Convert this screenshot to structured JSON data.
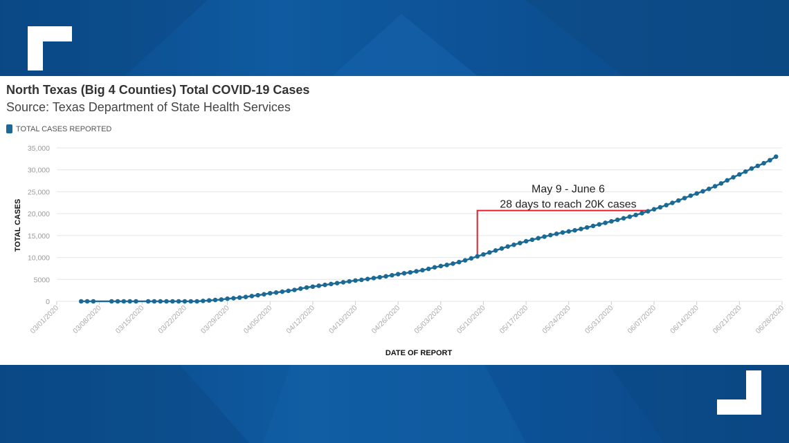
{
  "colors": {
    "brand_blue": "#0d4d8a",
    "series": "#1b6a95",
    "annotation": "#e0202a",
    "panel": "#ffffff"
  },
  "header": {
    "title": "North Texas (Big 4 Counties) Total COVID-19 Cases",
    "subtitle": "Source: Texas Department of State Health Services"
  },
  "chart_data": {
    "type": "line",
    "title": "North Texas (Big 4 Counties) Total COVID-19 Cases",
    "subtitle": "Source: Texas Department of State Health Services",
    "xlabel": "DATE OF REPORT",
    "ylabel": "TOTAL CASES",
    "ylim": [
      0,
      35000
    ],
    "xlim": [
      "2020-03-01",
      "2020-06-28"
    ],
    "y_ticks": [
      "0",
      "5000",
      "10,000",
      "15,000",
      "20,000",
      "25,000",
      "30,000",
      "35,000"
    ],
    "x_ticks": [
      "03/01/2020",
      "03/08/2020",
      "03/15/2020",
      "03/22/2020",
      "03/29/2020",
      "04/05/2020",
      "04/12/2020",
      "04/19/2020",
      "04/26/2020",
      "05/03/2020",
      "05/10/2020",
      "05/17/2020",
      "05/24/2020",
      "05/31/2020",
      "06/07/2020",
      "06/14/2020",
      "06/21/2020",
      "06/28/2020"
    ],
    "grid": true,
    "legend_position": "top-left",
    "series": [
      {
        "name": "TOTAL CASES REPORTED",
        "color": "#1b6a95",
        "points": [
          {
            "x": "2020-03-05",
            "y": 0
          },
          {
            "x": "2020-03-06",
            "y": 0
          },
          {
            "x": "2020-03-07",
            "y": 0
          },
          {
            "x": "2020-03-10",
            "y": 0
          },
          {
            "x": "2020-03-11",
            "y": 0
          },
          {
            "x": "2020-03-12",
            "y": 0
          },
          {
            "x": "2020-03-13",
            "y": 0
          },
          {
            "x": "2020-03-14",
            "y": 0
          },
          {
            "x": "2020-03-16",
            "y": 0
          },
          {
            "x": "2020-03-17",
            "y": 0
          },
          {
            "x": "2020-03-18",
            "y": 0
          },
          {
            "x": "2020-03-19",
            "y": 0
          },
          {
            "x": "2020-03-20",
            "y": 0
          },
          {
            "x": "2020-03-21",
            "y": 0
          },
          {
            "x": "2020-03-22",
            "y": 0
          },
          {
            "x": "2020-03-23",
            "y": 0
          },
          {
            "x": "2020-03-24",
            "y": 0
          },
          {
            "x": "2020-03-25",
            "y": 100
          },
          {
            "x": "2020-03-26",
            "y": 200
          },
          {
            "x": "2020-03-27",
            "y": 300
          },
          {
            "x": "2020-03-28",
            "y": 400
          },
          {
            "x": "2020-03-29",
            "y": 600
          },
          {
            "x": "2020-03-30",
            "y": 700
          },
          {
            "x": "2020-03-31",
            "y": 850
          },
          {
            "x": "2020-04-01",
            "y": 1000
          },
          {
            "x": "2020-04-02",
            "y": 1200
          },
          {
            "x": "2020-04-03",
            "y": 1400
          },
          {
            "x": "2020-04-04",
            "y": 1600
          },
          {
            "x": "2020-04-05",
            "y": 1850
          },
          {
            "x": "2020-04-06",
            "y": 2000
          },
          {
            "x": "2020-04-07",
            "y": 2200
          },
          {
            "x": "2020-04-08",
            "y": 2400
          },
          {
            "x": "2020-04-09",
            "y": 2600
          },
          {
            "x": "2020-04-10",
            "y": 2900
          },
          {
            "x": "2020-04-11",
            "y": 3150
          },
          {
            "x": "2020-04-12",
            "y": 3350
          },
          {
            "x": "2020-04-13",
            "y": 3550
          },
          {
            "x": "2020-04-14",
            "y": 3750
          },
          {
            "x": "2020-04-15",
            "y": 3950
          },
          {
            "x": "2020-04-16",
            "y": 4150
          },
          {
            "x": "2020-04-17",
            "y": 4350
          },
          {
            "x": "2020-04-18",
            "y": 4550
          },
          {
            "x": "2020-04-19",
            "y": 4750
          },
          {
            "x": "2020-04-20",
            "y": 4900
          },
          {
            "x": "2020-04-21",
            "y": 5100
          },
          {
            "x": "2020-04-22",
            "y": 5300
          },
          {
            "x": "2020-04-23",
            "y": 5500
          },
          {
            "x": "2020-04-24",
            "y": 5700
          },
          {
            "x": "2020-04-25",
            "y": 5950
          },
          {
            "x": "2020-04-26",
            "y": 6200
          },
          {
            "x": "2020-04-27",
            "y": 6400
          },
          {
            "x": "2020-04-28",
            "y": 6600
          },
          {
            "x": "2020-04-29",
            "y": 6850
          },
          {
            "x": "2020-04-30",
            "y": 7100
          },
          {
            "x": "2020-05-01",
            "y": 7400
          },
          {
            "x": "2020-05-02",
            "y": 7750
          },
          {
            "x": "2020-05-03",
            "y": 8050
          },
          {
            "x": "2020-05-04",
            "y": 8300
          },
          {
            "x": "2020-05-05",
            "y": 8600
          },
          {
            "x": "2020-05-06",
            "y": 8950
          },
          {
            "x": "2020-05-07",
            "y": 9350
          },
          {
            "x": "2020-05-08",
            "y": 9800
          },
          {
            "x": "2020-05-09",
            "y": 10250
          },
          {
            "x": "2020-05-10",
            "y": 10700
          },
          {
            "x": "2020-05-11",
            "y": 11150
          },
          {
            "x": "2020-05-12",
            "y": 11600
          },
          {
            "x": "2020-05-13",
            "y": 12050
          },
          {
            "x": "2020-05-14",
            "y": 12500
          },
          {
            "x": "2020-05-15",
            "y": 12900
          },
          {
            "x": "2020-05-16",
            "y": 13300
          },
          {
            "x": "2020-05-17",
            "y": 13700
          },
          {
            "x": "2020-05-18",
            "y": 14050
          },
          {
            "x": "2020-05-19",
            "y": 14400
          },
          {
            "x": "2020-05-20",
            "y": 14750
          },
          {
            "x": "2020-05-21",
            "y": 15100
          },
          {
            "x": "2020-05-22",
            "y": 15400
          },
          {
            "x": "2020-05-23",
            "y": 15700
          },
          {
            "x": "2020-05-24",
            "y": 15950
          },
          {
            "x": "2020-05-25",
            "y": 16200
          },
          {
            "x": "2020-05-26",
            "y": 16500
          },
          {
            "x": "2020-05-27",
            "y": 16850
          },
          {
            "x": "2020-05-28",
            "y": 17200
          },
          {
            "x": "2020-05-29",
            "y": 17550
          },
          {
            "x": "2020-05-30",
            "y": 17900
          },
          {
            "x": "2020-05-31",
            "y": 18250
          },
          {
            "x": "2020-06-01",
            "y": 18600
          },
          {
            "x": "2020-06-02",
            "y": 18950
          },
          {
            "x": "2020-06-03",
            "y": 19300
          },
          {
            "x": "2020-06-04",
            "y": 19700
          },
          {
            "x": "2020-06-05",
            "y": 20100
          },
          {
            "x": "2020-06-06",
            "y": 20550
          },
          {
            "x": "2020-06-07",
            "y": 21000
          },
          {
            "x": "2020-06-08",
            "y": 21450
          },
          {
            "x": "2020-06-09",
            "y": 21950
          },
          {
            "x": "2020-06-10",
            "y": 22450
          },
          {
            "x": "2020-06-11",
            "y": 23000
          },
          {
            "x": "2020-06-12",
            "y": 23550
          },
          {
            "x": "2020-06-13",
            "y": 24100
          },
          {
            "x": "2020-06-14",
            "y": 24600
          },
          {
            "x": "2020-06-15",
            "y": 25100
          },
          {
            "x": "2020-06-16",
            "y": 25650
          },
          {
            "x": "2020-06-17",
            "y": 26250
          },
          {
            "x": "2020-06-18",
            "y": 26900
          },
          {
            "x": "2020-06-19",
            "y": 27600
          },
          {
            "x": "2020-06-20",
            "y": 28300
          },
          {
            "x": "2020-06-21",
            "y": 28950
          },
          {
            "x": "2020-06-22",
            "y": 29600
          },
          {
            "x": "2020-06-23",
            "y": 30300
          },
          {
            "x": "2020-06-24",
            "y": 30900
          },
          {
            "x": "2020-06-25",
            "y": 31500
          },
          {
            "x": "2020-06-26",
            "y": 32200
          },
          {
            "x": "2020-06-27",
            "y": 33000
          }
        ]
      }
    ],
    "annotations": [
      {
        "lines": [
          "May 9 - June 6",
          "28 days to reach 20K cases"
        ],
        "bracket_start": {
          "x": "2020-05-09",
          "y": 10250
        },
        "bracket_end": {
          "x": "2020-06-06",
          "y": 20550
        },
        "color": "#e0202a"
      }
    ]
  }
}
